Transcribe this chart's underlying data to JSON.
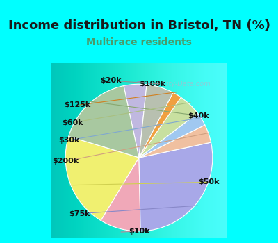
{
  "title": "Income distribution in Bristol, TN (%)",
  "subtitle": "Multirace residents",
  "title_color": "#1a1a1a",
  "subtitle_color": "#4a9a6a",
  "background_cyan": "#00ffff",
  "background_chart": "#e8f5ee",
  "watermark": "City-Data.com",
  "labels": [
    "$100k",
    "$40k",
    "$50k",
    "$10k",
    "$75k",
    "$200k",
    "$30k",
    "$60k",
    "$125k",
    "$20k"
  ],
  "values": [
    5,
    17,
    21,
    9,
    28,
    4,
    3,
    5,
    2,
    6
  ],
  "colors": [
    "#c0b8e0",
    "#a8c8a0",
    "#f0f070",
    "#f0a8b8",
    "#a8a8e8",
    "#f0c0a0",
    "#a0c8f0",
    "#c8e0a0",
    "#f0a040",
    "#b8c0b0"
  ],
  "line_colors": [
    "#9090c0",
    "#88a870",
    "#d0d050",
    "#c08898",
    "#8888c8",
    "#d0a080",
    "#80a8d0",
    "#a8c080",
    "#d08020",
    "#909090"
  ],
  "startangle": 84,
  "label_fontsize": 8,
  "title_fontsize": 13,
  "subtitle_fontsize": 10
}
